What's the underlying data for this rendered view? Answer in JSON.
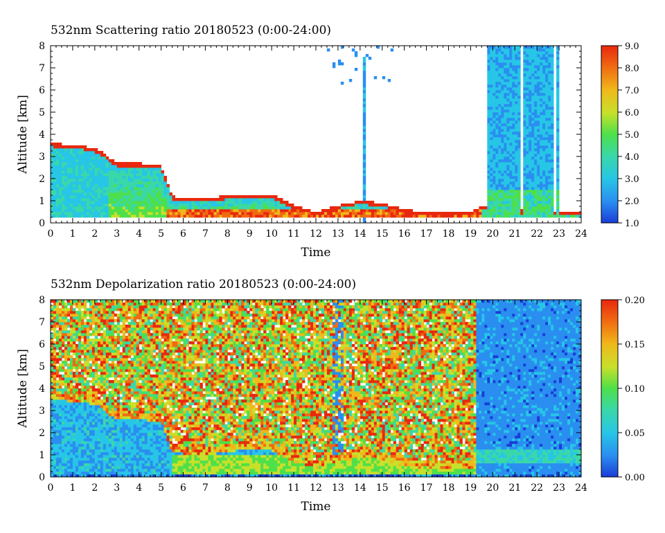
{
  "chart_data": [
    {
      "type": "heatmap",
      "title": "532nm Scattering ratio  20180523 (0:00-24:00)",
      "xlabel": "Time",
      "ylabel": "Altitude [km]",
      "xlim": [
        0,
        24
      ],
      "ylim": [
        0,
        8
      ],
      "x_ticks": [
        "0",
        "1",
        "2",
        "3",
        "4",
        "5",
        "6",
        "7",
        "8",
        "9",
        "10",
        "11",
        "12",
        "13",
        "14",
        "15",
        "16",
        "17",
        "18",
        "19",
        "20",
        "21",
        "22",
        "23",
        "24"
      ],
      "y_ticks": [
        "0",
        "1",
        "2",
        "3",
        "4",
        "5",
        "6",
        "7",
        "8"
      ],
      "colorbar": {
        "min": 1.0,
        "max": 9.0,
        "ticks": [
          "1.0",
          "2.0",
          "3.0",
          "4.0",
          "5.0",
          "6.0",
          "7.0",
          "8.0",
          "9.0"
        ],
        "colors": [
          "#1a3cd8",
          "#2a8ef0",
          "#27c6e6",
          "#3ad8a8",
          "#4ee04a",
          "#c8e02a",
          "#f0b81a",
          "#f06a12",
          "#e8280e"
        ]
      },
      "features": [
        {
          "name": "low aerosol/cloud layer",
          "time_range": [
            0,
            19.5
          ],
          "altitude_top_km": [
            3.6,
            0.4
          ]
        },
        {
          "name": "thin cloud column",
          "time_range": [
            14.1,
            14.3
          ],
          "altitude_km": [
            1,
            7
          ]
        },
        {
          "name": "high cloud columns",
          "time_range": [
            19.8,
            23.0
          ],
          "altitude_km": [
            0.3,
            8
          ]
        }
      ]
    },
    {
      "type": "heatmap",
      "title": "532nm Depolarization ratio  20180523 (0:00-24:00)",
      "xlabel": "Time",
      "ylabel": "Altitude [km]",
      "xlim": [
        0,
        24
      ],
      "ylim": [
        0,
        8
      ],
      "x_ticks": [
        "0",
        "1",
        "2",
        "3",
        "4",
        "5",
        "6",
        "7",
        "8",
        "9",
        "10",
        "11",
        "12",
        "13",
        "14",
        "15",
        "16",
        "17",
        "18",
        "19",
        "20",
        "21",
        "22",
        "23",
        "24"
      ],
      "y_ticks": [
        "0",
        "1",
        "2",
        "3",
        "4",
        "5",
        "6",
        "7",
        "8"
      ],
      "colorbar": {
        "min": 0.0,
        "max": 0.2,
        "ticks": [
          "0.00",
          "0.05",
          "0.10",
          "0.15",
          "0.20"
        ],
        "colors": [
          "#1a3cd8",
          "#2a8ef0",
          "#27c6e6",
          "#3ad8a8",
          "#4ee04a",
          "#c8e02a",
          "#f0b81a",
          "#f06a12",
          "#e8280e"
        ]
      }
    }
  ]
}
